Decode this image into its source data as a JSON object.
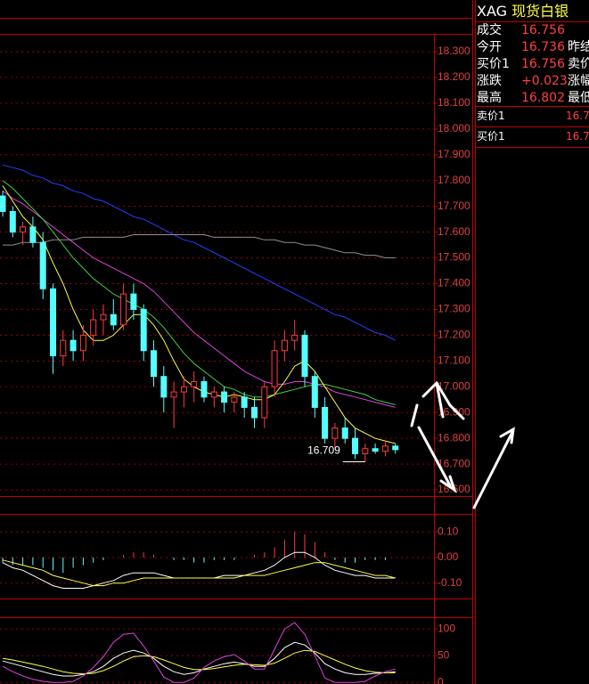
{
  "quote_panel": {
    "symbol": "XAG",
    "name": "现货白银",
    "rows": [
      [
        "成交",
        "16.756"
      ],
      [
        "今开",
        "16.736",
        "昨结"
      ],
      [
        "买价1",
        "16.756",
        "卖价"
      ],
      [
        "涨跌",
        "+0.023",
        "涨幅"
      ],
      [
        "最高",
        "16.802",
        "最低"
      ]
    ],
    "book": [
      [
        "卖价1",
        "16.7"
      ],
      [
        "买价1",
        "16.7"
      ]
    ]
  },
  "chart_data": [
    {
      "type": "candlestick",
      "up_color": "#ff3c3c",
      "down_color": "#54ffff",
      "annotation": "16.709",
      "ylim": [
        16.576,
        18.369
      ],
      "grid": true,
      "yticks": [
        {
          "value": 16.6,
          "label": "16.600"
        },
        {
          "value": 16.7,
          "label": "16.700"
        },
        {
          "value": 16.8,
          "label": "16.800"
        },
        {
          "value": 16.9,
          "label": "16.900"
        },
        {
          "value": 17.0,
          "label": "17.000"
        },
        {
          "value": 17.1,
          "label": "17.100"
        },
        {
          "value": 17.2,
          "label": "17.200"
        },
        {
          "value": 17.3,
          "label": "17.300"
        },
        {
          "value": 17.4,
          "label": "17.400"
        },
        {
          "value": 17.5,
          "label": "17.500"
        },
        {
          "value": 17.6,
          "label": "17.600"
        },
        {
          "value": 17.7,
          "label": "17.700"
        },
        {
          "value": 17.8,
          "label": "17.800"
        },
        {
          "value": 17.9,
          "label": "17.900"
        },
        {
          "value": 18.0,
          "label": "18.000"
        },
        {
          "value": 18.1,
          "label": "18.100"
        },
        {
          "value": 18.2,
          "label": "18.200"
        },
        {
          "value": 18.3,
          "label": "18.300"
        }
      ],
      "open": [
        17.74,
        17.68,
        17.6,
        17.62,
        17.56,
        17.38,
        17.12,
        17.18,
        17.14,
        17.2,
        17.26,
        17.28,
        17.24,
        17.36,
        17.3,
        17.14,
        17.04,
        16.96,
        16.98,
        17.0,
        17.02,
        16.96,
        16.98,
        16.94,
        16.96,
        16.92,
        16.88,
        17.0,
        17.14,
        17.18,
        17.2,
        17.04,
        16.92,
        16.8,
        16.84,
        16.8,
        16.74,
        16.76,
        16.75,
        16.77
      ],
      "high": [
        17.76,
        17.7,
        17.64,
        17.66,
        17.6,
        17.4,
        17.22,
        17.22,
        17.24,
        17.3,
        17.32,
        17.34,
        17.4,
        17.4,
        17.32,
        17.18,
        17.08,
        17.02,
        17.04,
        17.06,
        17.04,
        17.0,
        17.0,
        16.98,
        16.98,
        16.96,
        17.02,
        17.18,
        17.22,
        17.26,
        17.22,
        17.06,
        16.96,
        16.86,
        16.88,
        16.84,
        16.78,
        16.78,
        16.79,
        16.78
      ],
      "low": [
        17.66,
        17.58,
        17.55,
        17.54,
        17.34,
        17.05,
        17.08,
        17.1,
        17.1,
        17.16,
        17.2,
        17.22,
        17.22,
        17.26,
        17.1,
        17.0,
        16.9,
        16.84,
        16.92,
        16.94,
        16.94,
        16.92,
        16.9,
        16.9,
        16.88,
        16.84,
        16.84,
        16.96,
        17.1,
        17.14,
        17.0,
        16.88,
        16.78,
        16.76,
        16.78,
        16.72,
        16.709,
        16.74,
        16.73,
        16.74
      ],
      "close": [
        17.68,
        17.6,
        17.62,
        17.56,
        17.38,
        17.12,
        17.18,
        17.14,
        17.2,
        17.26,
        17.28,
        17.24,
        17.36,
        17.3,
        17.14,
        17.04,
        16.96,
        16.98,
        17.0,
        17.02,
        16.96,
        16.98,
        16.94,
        16.96,
        16.92,
        16.88,
        17.0,
        17.14,
        17.18,
        17.2,
        17.04,
        16.92,
        16.8,
        16.84,
        16.8,
        16.74,
        16.76,
        16.75,
        16.77,
        16.756
      ],
      "series": [
        {
          "color": "#2040ff",
          "values": [
            17.86,
            17.85,
            17.84,
            17.82,
            17.81,
            17.79,
            17.78,
            17.76,
            17.75,
            17.73,
            17.72,
            17.7,
            17.68,
            17.66,
            17.65,
            17.63,
            17.61,
            17.59,
            17.57,
            17.56,
            17.54,
            17.52,
            17.5,
            17.48,
            17.46,
            17.44,
            17.42,
            17.4,
            17.38,
            17.36,
            17.34,
            17.32,
            17.3,
            17.28,
            17.27,
            17.25,
            17.23,
            17.21,
            17.2,
            17.18
          ]
        },
        {
          "color": "#e040e0",
          "values": [
            17.76,
            17.73,
            17.71,
            17.68,
            17.65,
            17.62,
            17.59,
            17.56,
            17.53,
            17.5,
            17.48,
            17.46,
            17.44,
            17.42,
            17.4,
            17.37,
            17.33,
            17.29,
            17.25,
            17.21,
            17.18,
            17.15,
            17.12,
            17.09,
            17.06,
            17.04,
            17.02,
            17.01,
            17.01,
            17.02,
            17.02,
            17.01,
            17.0,
            16.98,
            16.97,
            16.96,
            16.95,
            16.94,
            16.93,
            16.92
          ]
        },
        {
          "color": "#40d040",
          "values": [
            17.8,
            17.77,
            17.73,
            17.69,
            17.65,
            17.6,
            17.55,
            17.5,
            17.46,
            17.42,
            17.39,
            17.36,
            17.34,
            17.32,
            17.3,
            17.27,
            17.23,
            17.18,
            17.13,
            17.09,
            17.06,
            17.03,
            17.0,
            16.99,
            16.97,
            16.96,
            16.96,
            16.97,
            16.98,
            16.99,
            17.0,
            17.01,
            17.01,
            17.0,
            16.99,
            16.98,
            16.97,
            16.95,
            16.94,
            16.93
          ]
        },
        {
          "color": "#909090",
          "values": [
            17.55,
            17.55,
            17.56,
            17.56,
            17.56,
            17.57,
            17.57,
            17.57,
            17.58,
            17.58,
            17.58,
            17.58,
            17.58,
            17.59,
            17.59,
            17.59,
            17.59,
            17.59,
            17.59,
            17.59,
            17.59,
            17.58,
            17.58,
            17.58,
            17.58,
            17.58,
            17.57,
            17.57,
            17.56,
            17.56,
            17.55,
            17.55,
            17.54,
            17.53,
            17.52,
            17.52,
            17.51,
            17.51,
            17.5,
            17.5
          ]
        },
        {
          "color": "#ffff40",
          "values": [
            17.78,
            17.72,
            17.66,
            17.62,
            17.57,
            17.48,
            17.4,
            17.3,
            17.22,
            17.18,
            17.18,
            17.2,
            17.24,
            17.28,
            17.28,
            17.24,
            17.18,
            17.1,
            17.03,
            17.0,
            16.98,
            16.97,
            16.96,
            16.97,
            16.96,
            16.95,
            16.95,
            16.97,
            17.02,
            17.08,
            17.1,
            17.06,
            17.0,
            16.94,
            16.88,
            16.84,
            16.82,
            16.8,
            16.79,
            16.78
          ]
        }
      ]
    },
    {
      "type": "macd",
      "up_color": "#ff3c3c",
      "down_color": "#54ffff",
      "ylim": [
        -0.16,
        0.17
      ],
      "grid": true,
      "yticks": [
        {
          "value": -0.1,
          "label": "-0.10"
        },
        {
          "value": 0,
          "label": "0.00"
        },
        {
          "value": 0.1,
          "label": "0.10"
        }
      ],
      "values": [
        -0.02,
        -0.03,
        -0.03,
        -0.03,
        -0.04,
        -0.05,
        -0.06,
        -0.04,
        -0.03,
        -0.02,
        -0.01,
        0.0,
        0.01,
        0.02,
        0.02,
        0.01,
        0.0,
        -0.01,
        -0.01,
        -0.02,
        -0.02,
        -0.01,
        -0.01,
        -0.01,
        0.0,
        0.01,
        0.02,
        0.04,
        0.07,
        0.1,
        0.09,
        0.06,
        0.02,
        -0.01,
        -0.02,
        -0.02,
        -0.01,
        -0.01,
        -0.01,
        0.0
      ],
      "series": [
        {
          "color": "#ffffff",
          "values": [
            -0.02,
            -0.04,
            -0.05,
            -0.07,
            -0.09,
            -0.11,
            -0.12,
            -0.12,
            -0.12,
            -0.11,
            -0.1,
            -0.09,
            -0.07,
            -0.06,
            -0.06,
            -0.06,
            -0.07,
            -0.08,
            -0.08,
            -0.08,
            -0.08,
            -0.08,
            -0.07,
            -0.07,
            -0.07,
            -0.06,
            -0.05,
            -0.03,
            0.0,
            0.02,
            0.02,
            0.0,
            -0.03,
            -0.05,
            -0.06,
            -0.07,
            -0.07,
            -0.08,
            -0.08,
            -0.08
          ]
        },
        {
          "color": "#ffff40",
          "values": [
            -0.01,
            -0.02,
            -0.03,
            -0.04,
            -0.05,
            -0.07,
            -0.08,
            -0.09,
            -0.1,
            -0.11,
            -0.11,
            -0.1,
            -0.1,
            -0.09,
            -0.08,
            -0.08,
            -0.08,
            -0.08,
            -0.08,
            -0.08,
            -0.08,
            -0.08,
            -0.08,
            -0.08,
            -0.07,
            -0.07,
            -0.07,
            -0.06,
            -0.05,
            -0.04,
            -0.03,
            -0.02,
            -0.02,
            -0.03,
            -0.04,
            -0.05,
            -0.06,
            -0.07,
            -0.07,
            -0.08
          ]
        }
      ]
    },
    {
      "type": "line",
      "ylim": [
        -3,
        122
      ],
      "grid": true,
      "yticks": [
        0,
        50,
        100
      ],
      "series": [
        {
          "color": "#ffffff",
          "values": [
            40,
            35,
            30,
            25,
            20,
            15,
            12,
            12,
            15,
            20,
            30,
            45,
            55,
            60,
            55,
            45,
            30,
            20,
            15,
            18,
            25,
            30,
            35,
            38,
            35,
            30,
            30,
            45,
            65,
            75,
            70,
            55,
            35,
            25,
            18,
            15,
            15,
            17,
            18,
            20
          ]
        },
        {
          "color": "#ffff40",
          "values": [
            45,
            42,
            38,
            34,
            30,
            25,
            20,
            17,
            16,
            17,
            22,
            30,
            40,
            48,
            50,
            48,
            42,
            35,
            28,
            24,
            24,
            26,
            29,
            32,
            34,
            33,
            32,
            36,
            45,
            55,
            60,
            58,
            50,
            42,
            34,
            27,
            22,
            19,
            18,
            18
          ]
        },
        {
          "color": "#e040e0",
          "values": [
            30,
            20,
            12,
            6,
            2,
            0,
            0,
            2,
            12,
            28,
            48,
            75,
            90,
            92,
            68,
            40,
            10,
            0,
            0,
            8,
            28,
            40,
            48,
            52,
            40,
            25,
            25,
            62,
            100,
            112,
            90,
            50,
            8,
            0,
            0,
            0,
            2,
            12,
            20,
            25
          ]
        }
      ]
    }
  ]
}
